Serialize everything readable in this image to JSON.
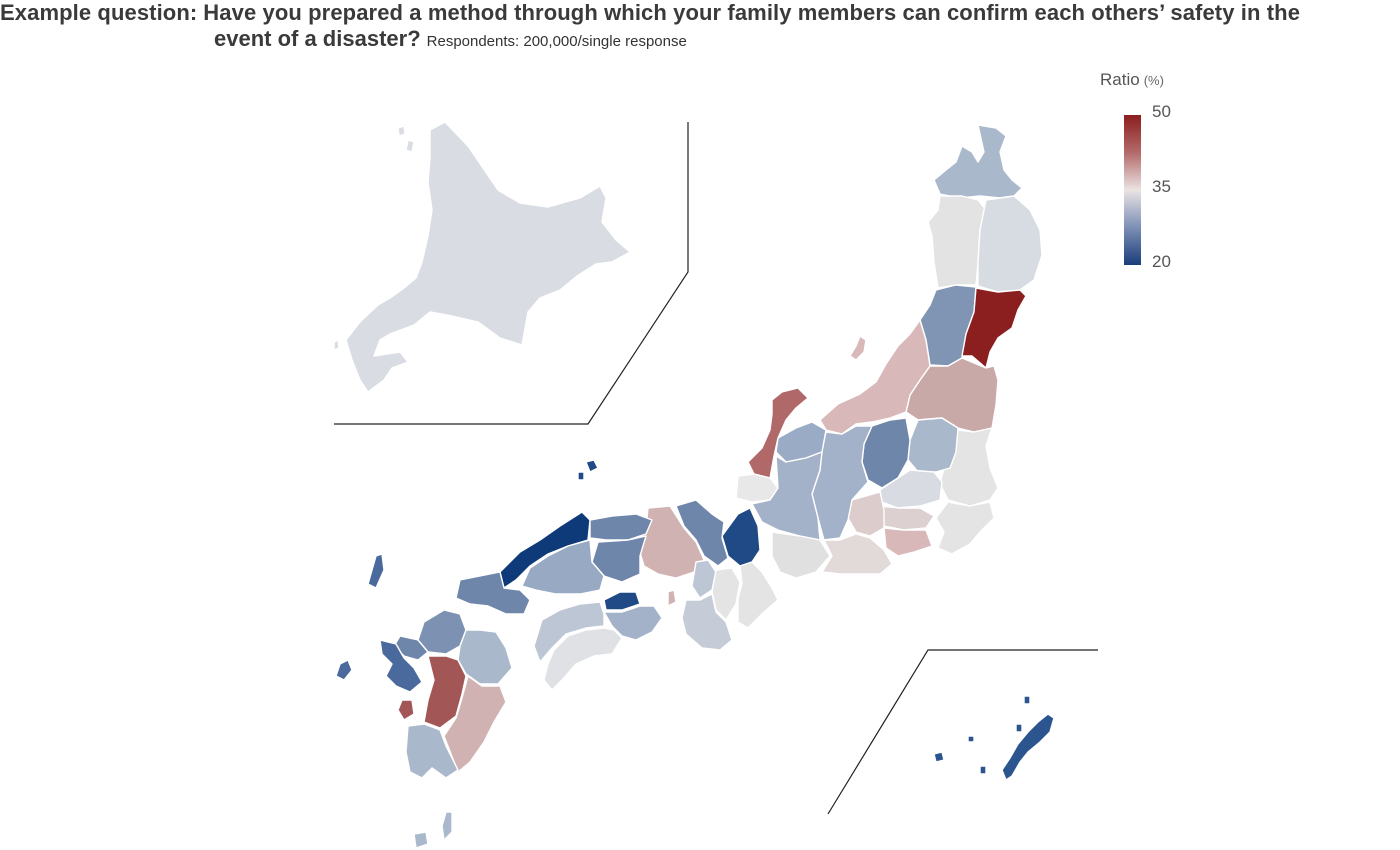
{
  "title": {
    "prefix": "Example question:",
    "line1_rest": "Have you prepared a method through which your family members can confirm each others’ safety in the",
    "line2": "event of a disaster?",
    "respondents": "Respondents: 200,000/single response"
  },
  "legend": {
    "title": "Ratio",
    "unit": "(%)",
    "max": "50",
    "mid": "35",
    "min": "20",
    "colors": {
      "high": "#8b1e1e",
      "mid": "#ebe3e3",
      "low": "#1a3d7a"
    }
  }
}
